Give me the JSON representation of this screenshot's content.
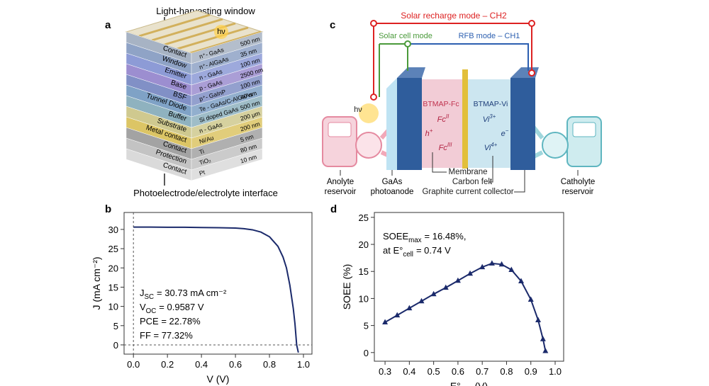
{
  "panel_a": {
    "label": "a",
    "title": "Light-harvesting window",
    "photon": "hν",
    "bottom_label": "Photoelectrode/electrolyte interface",
    "layers": [
      {
        "name": "Contact",
        "material": "n⁺- GaAs",
        "thickness": "500 nm",
        "color": "#a7b3c4"
      },
      {
        "name": "Window",
        "material": "n⁺- AlGaAs",
        "thickness": "35 nm",
        "color": "#8fa3c6"
      },
      {
        "name": "Emitter",
        "material": "n - GaAs",
        "thickness": "100 nm",
        "color": "#8d9bd6"
      },
      {
        "name": "Base",
        "material": "p - GaAs",
        "thickness": "2500 nm",
        "color": "#9c8ed0"
      },
      {
        "name": "BSF",
        "material": "p⁺- GaInP",
        "thickness": "100 nm",
        "color": "#8190c6"
      },
      {
        "name": "Tunnel Diode",
        "material": "Te - GaAs/C-AlGaAs",
        "thickness": "40 nm",
        "color": "#7fa2c6"
      },
      {
        "name": "Buffer",
        "material": "Si doped GaAs",
        "thickness": "500 nm",
        "color": "#8fb2bf"
      },
      {
        "name": "Substrate",
        "material": "n - GaAs",
        "thickness": "200 μm",
        "color": "#cfc98f"
      },
      {
        "name": "Metal contact",
        "material": "Ni/Au",
        "thickness": "200 nm",
        "color": "#dcc565"
      },
      {
        "name": "Contact",
        "material": "Ti",
        "thickness": "5 nm",
        "color": "#a3a3a3"
      },
      {
        "name": "Protection",
        "material": "TiO₂",
        "thickness": "80 nm",
        "color": "#c3c3c3"
      },
      {
        "name": "Contact",
        "material": "Pt",
        "thickness": "10 nm",
        "color": "#dadada"
      }
    ]
  },
  "panel_c": {
    "label": "c",
    "recharge_mode": "Solar recharge mode – CH2",
    "solar_cell_mode": "Solar cell mode",
    "rfb_mode": "RFB mode – CH1",
    "photon": "hν",
    "anolyte_species": "BTMAP-Fc",
    "catholyte_species": "BTMAP-Vi",
    "fc2": {
      "main": "Fc",
      "sup": "II"
    },
    "fc3": {
      "main": "Fc",
      "sup": "III"
    },
    "hole": {
      "main": "h",
      "sup": "+"
    },
    "electron": {
      "main": "e",
      "sup": "−"
    },
    "vi3": {
      "main": "Vi",
      "sup": "3+"
    },
    "vi4": {
      "main": "Vi",
      "sup": "4+"
    },
    "anolyte_reservoir": [
      "Anolyte",
      "reservoir"
    ],
    "photoanode": [
      "GaAs",
      "photoanode"
    ],
    "membrane": "Membrane",
    "carbon_felt": "Carbon felt",
    "collector": "Graphite current collector",
    "catholyte_reservoir": [
      "Catholyte",
      "reservoir"
    ]
  },
  "chart_data": [
    {
      "type": "line",
      "panel_label": "b",
      "xlabel": "V (V)",
      "ylabel": "J (mA cm⁻²)",
      "color": "#1b2a6b",
      "x": [
        0,
        0.1,
        0.2,
        0.3,
        0.4,
        0.5,
        0.6,
        0.65,
        0.7,
        0.75,
        0.8,
        0.85,
        0.88,
        0.9,
        0.92,
        0.94,
        0.95,
        0.96,
        0.97
      ],
      "values": [
        30.6,
        30.6,
        30.55,
        30.55,
        30.5,
        30.45,
        30.35,
        30.2,
        29.9,
        29.3,
        28.1,
        25.6,
        22.8,
        20.0,
        15.5,
        9.5,
        5.5,
        0,
        -2
      ],
      "xlim": [
        -0.055,
        1.05
      ],
      "ylim": [
        -2.4,
        34.4
      ],
      "xticks": [
        {
          "value": 0,
          "label": "0.0"
        },
        0.2,
        0.4,
        0.6,
        0.8,
        {
          "value": 1,
          "label": "1.0"
        }
      ],
      "yticks": [
        0,
        5,
        10,
        15,
        20,
        25,
        30
      ],
      "reference_lines": {
        "x": 0,
        "y": 0
      },
      "annotations": [
        {
          "main": "J",
          "sub": "SC",
          "rest": "= 30.73 mA cm⁻²"
        },
        {
          "main": "V",
          "sub": "OC",
          "rest": "= 0.9587 V"
        },
        "PCE = 22.78%",
        "FF = 77.32%"
      ]
    },
    {
      "type": "line",
      "panel_label": "d",
      "xlabel": {
        "main": "E°",
        "sub": "cell",
        "rest": "(V)"
      },
      "ylabel": "SOEE (%)",
      "color": "#1b2a6b",
      "marker": "triangle",
      "x": [
        0.3,
        0.35,
        0.4,
        0.45,
        0.5,
        0.55,
        0.6,
        0.65,
        0.7,
        0.74,
        0.78,
        0.82,
        0.86,
        0.9,
        0.93,
        0.95,
        0.96
      ],
      "values": [
        5.6,
        6.9,
        8.2,
        9.5,
        10.8,
        12.0,
        13.3,
        14.6,
        15.8,
        16.48,
        16.3,
        15.3,
        13.2,
        9.8,
        6.0,
        2.5,
        0.3
      ],
      "xlim": [
        0.256,
        1.035
      ],
      "ylim": [
        -1.6,
        25.9
      ],
      "xticks": [
        0.3,
        0.4,
        0.5,
        0.6,
        0.7,
        0.8,
        0.9,
        {
          "value": 1,
          "label": "1.0"
        }
      ],
      "yticks": [
        0,
        5,
        10,
        15,
        20,
        25
      ],
      "annotations": [
        {
          "main": "SOEE",
          "sub": "max",
          "rest": "= 16.48%,"
        },
        {
          "main": "at E°",
          "sub": "cell",
          "rest": "= 0.74 V"
        }
      ]
    }
  ]
}
